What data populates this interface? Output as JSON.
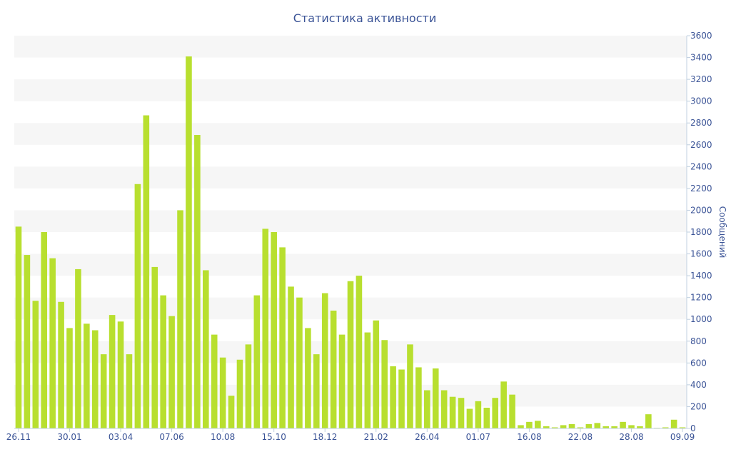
{
  "colors": {
    "bar": "#b8df2f",
    "text": "#3a5396",
    "band": "#f6f6f6",
    "axis": "#c0d0e0"
  },
  "chart_data": {
    "type": "bar",
    "title": "Статистика активности",
    "xlabel": "",
    "ylabel": "Сообщений",
    "ylim": [
      0,
      3600
    ],
    "yticks": [
      0,
      200,
      400,
      600,
      800,
      1000,
      1200,
      1400,
      1600,
      1800,
      2000,
      2200,
      2400,
      2600,
      2800,
      3000,
      3200,
      3400,
      3600
    ],
    "y_axis_side": "right",
    "grid": "alternating horizontal bands",
    "legend": "none",
    "x_tick_labels": [
      {
        "index": 0,
        "label": "26.11"
      },
      {
        "index": 6,
        "label": "30.01"
      },
      {
        "index": 12,
        "label": "03.04"
      },
      {
        "index": 18,
        "label": "07.06"
      },
      {
        "index": 24,
        "label": "10.08"
      },
      {
        "index": 30,
        "label": "15.10"
      },
      {
        "index": 36,
        "label": "18.12"
      },
      {
        "index": 42,
        "label": "21.02"
      },
      {
        "index": 48,
        "label": "26.04"
      },
      {
        "index": 54,
        "label": "01.07"
      },
      {
        "index": 60,
        "label": "16.08"
      },
      {
        "index": 66,
        "label": "22.08"
      },
      {
        "index": 72,
        "label": "28.08"
      },
      {
        "index": 78,
        "label": "09.09"
      }
    ],
    "values": [
      1850,
      1590,
      1170,
      1800,
      1560,
      1160,
      920,
      1460,
      960,
      900,
      680,
      1040,
      980,
      680,
      2240,
      2870,
      1480,
      1220,
      1030,
      2000,
      3410,
      2690,
      1450,
      860,
      650,
      300,
      630,
      770,
      1220,
      1830,
      1800,
      1660,
      1300,
      1200,
      920,
      680,
      1240,
      1080,
      860,
      1350,
      1400,
      880,
      990,
      810,
      570,
      540,
      770,
      560,
      350,
      550,
      350,
      290,
      280,
      180,
      250,
      190,
      280,
      430,
      310,
      30,
      60,
      70,
      20,
      10,
      30,
      40,
      10,
      40,
      50,
      20,
      20,
      60,
      30,
      20,
      130,
      5,
      10,
      80,
      10
    ]
  }
}
